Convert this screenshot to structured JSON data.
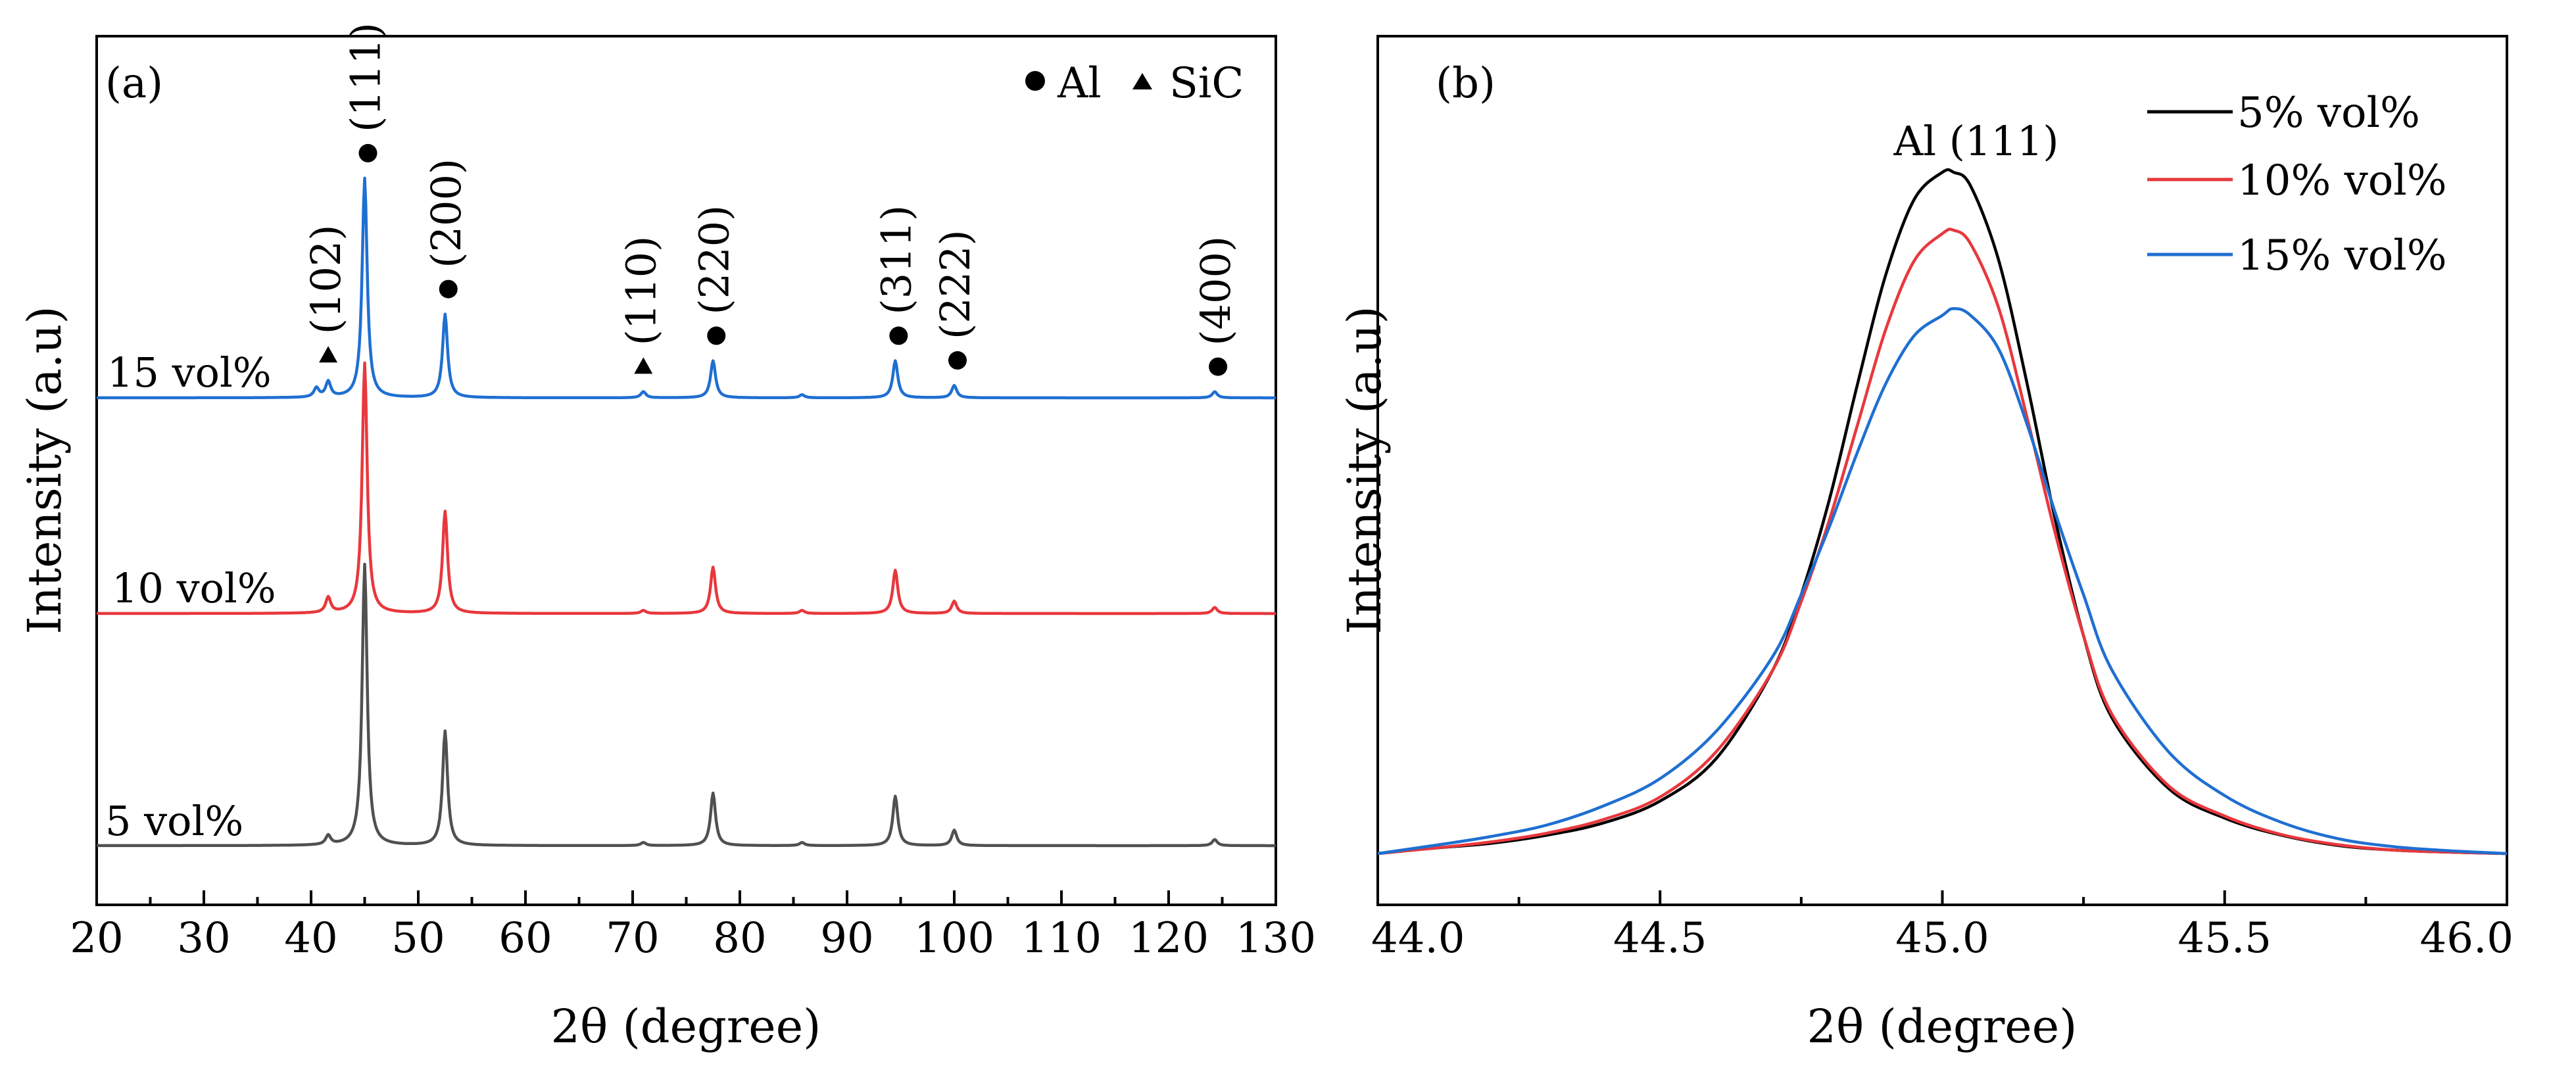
{
  "chart_data": [
    {
      "type": "line",
      "panel_label": "(a)",
      "xlabel": "2θ (degree)",
      "ylabel": "Intensity (a.u)",
      "xlim": [
        20,
        130
      ],
      "xticks": [
        20,
        30,
        40,
        50,
        60,
        70,
        80,
        90,
        100,
        110,
        120,
        130
      ],
      "legend": {
        "placement": "top-right",
        "entries": [
          {
            "marker": "circle",
            "label": "Al"
          },
          {
            "marker": "triangle",
            "label": "SiC"
          }
        ]
      },
      "series": [
        {
          "name": "15 vol%",
          "color": "#1f6fd1",
          "peaks": [
            {
              "x": 40.5,
              "h": 0.03
            },
            {
              "x": 41.6,
              "h": 0.05
            },
            {
              "x": 45.0,
              "h": 0.71
            },
            {
              "x": 52.5,
              "h": 0.27
            },
            {
              "x": 71.0,
              "h": 0.02
            },
            {
              "x": 77.5,
              "h": 0.12
            },
            {
              "x": 85.8,
              "h": 0.01
            },
            {
              "x": 94.5,
              "h": 0.12
            },
            {
              "x": 100.0,
              "h": 0.04
            },
            {
              "x": 124.3,
              "h": 0.02
            }
          ]
        },
        {
          "name": "10 vol%",
          "color": "#e8383d",
          "peaks": [
            {
              "x": 41.6,
              "h": 0.05
            },
            {
              "x": 45.0,
              "h": 0.81
            },
            {
              "x": 52.5,
              "h": 0.33
            },
            {
              "x": 71.0,
              "h": 0.01
            },
            {
              "x": 77.5,
              "h": 0.15
            },
            {
              "x": 85.8,
              "h": 0.01
            },
            {
              "x": 94.5,
              "h": 0.14
            },
            {
              "x": 100.0,
              "h": 0.04
            },
            {
              "x": 124.3,
              "h": 0.02
            }
          ]
        },
        {
          "name": "5 vol%",
          "color": "#505050",
          "peaks": [
            {
              "x": 41.6,
              "h": 0.03
            },
            {
              "x": 45.0,
              "h": 0.91
            },
            {
              "x": 52.5,
              "h": 0.37
            },
            {
              "x": 71.0,
              "h": 0.01
            },
            {
              "x": 77.5,
              "h": 0.17
            },
            {
              "x": 85.8,
              "h": 0.01
            },
            {
              "x": 94.5,
              "h": 0.16
            },
            {
              "x": 100.0,
              "h": 0.05
            },
            {
              "x": 124.3,
              "h": 0.02
            }
          ]
        }
      ],
      "peak_labels": [
        {
          "label": "(102)",
          "x": 41.6,
          "marker": "triangle"
        },
        {
          "label": "(111)",
          "x": 45.0,
          "marker": "circle"
        },
        {
          "label": "(200)",
          "x": 52.5,
          "marker": "circle"
        },
        {
          "label": "(110)",
          "x": 71.0,
          "marker": "triangle"
        },
        {
          "label": "(220)",
          "x": 77.5,
          "marker": "circle"
        },
        {
          "label": "(311)",
          "x": 94.5,
          "marker": "circle"
        },
        {
          "label": "(222)",
          "x": 100.0,
          "marker": "circle"
        },
        {
          "label": "(400)",
          "x": 124.3,
          "marker": "circle"
        }
      ]
    },
    {
      "type": "line",
      "panel_label": "(b)",
      "xlabel": "2θ (degree)",
      "ylabel": "Intensity (a.u)",
      "xlim": [
        44.0,
        46.0
      ],
      "xticks": [
        "44.0",
        "44.5",
        "45.0",
        "45.5",
        "46.0"
      ],
      "annotation": "Al (111)",
      "legend": {
        "placement": "top-right",
        "entries": [
          {
            "label": "5% vol%",
            "color": "#000000"
          },
          {
            "label": "10% vol%",
            "color": "#e8383d"
          },
          {
            "label": "15% vol%",
            "color": "#1f6fd1"
          }
        ]
      },
      "series": [
        {
          "name": "5% vol%",
          "color": "#000000",
          "x": [
            44.0,
            44.1,
            44.2,
            44.3,
            44.4,
            44.5,
            44.6,
            44.7,
            44.75,
            44.8,
            44.85,
            44.9,
            44.95,
            45.0,
            45.02,
            45.05,
            45.1,
            45.15,
            45.2,
            45.25,
            45.3,
            45.4,
            45.5,
            45.6,
            45.7,
            45.8,
            45.9,
            46.0
          ],
          "y": [
            0.0,
            0.008,
            0.015,
            0.027,
            0.045,
            0.077,
            0.14,
            0.27,
            0.38,
            0.52,
            0.69,
            0.85,
            0.96,
            1.0,
            1.0,
            0.98,
            0.87,
            0.69,
            0.49,
            0.32,
            0.2,
            0.096,
            0.052,
            0.027,
            0.012,
            0.005,
            0.002,
            0.0
          ]
        },
        {
          "name": "10% vol%",
          "color": "#e8383d",
          "x": [
            44.0,
            44.1,
            44.2,
            44.3,
            44.4,
            44.5,
            44.6,
            44.7,
            44.75,
            44.8,
            44.85,
            44.9,
            44.95,
            45.0,
            45.02,
            45.05,
            45.1,
            45.15,
            45.2,
            45.25,
            45.3,
            45.4,
            45.5,
            45.6,
            45.7,
            45.8,
            45.9,
            46.0
          ],
          "y": [
            0.0,
            0.008,
            0.017,
            0.03,
            0.05,
            0.083,
            0.15,
            0.27,
            0.37,
            0.49,
            0.63,
            0.77,
            0.87,
            0.91,
            0.915,
            0.895,
            0.8,
            0.64,
            0.47,
            0.32,
            0.205,
            0.1,
            0.055,
            0.028,
            0.013,
            0.005,
            0.002,
            0.0
          ]
        },
        {
          "name": "15% vol%",
          "color": "#1f6fd1",
          "x": [
            44.0,
            44.1,
            44.2,
            44.3,
            44.4,
            44.5,
            44.6,
            44.7,
            44.75,
            44.8,
            44.85,
            44.9,
            44.95,
            45.0,
            45.02,
            45.05,
            45.1,
            45.15,
            45.2,
            45.25,
            45.3,
            45.4,
            45.5,
            45.6,
            45.7,
            45.8,
            45.9,
            46.0
          ],
          "y": [
            0.0,
            0.012,
            0.025,
            0.042,
            0.07,
            0.11,
            0.18,
            0.29,
            0.38,
            0.48,
            0.59,
            0.69,
            0.76,
            0.79,
            0.8,
            0.79,
            0.74,
            0.63,
            0.5,
            0.38,
            0.27,
            0.15,
            0.085,
            0.046,
            0.022,
            0.01,
            0.004,
            0.0
          ]
        }
      ]
    }
  ]
}
